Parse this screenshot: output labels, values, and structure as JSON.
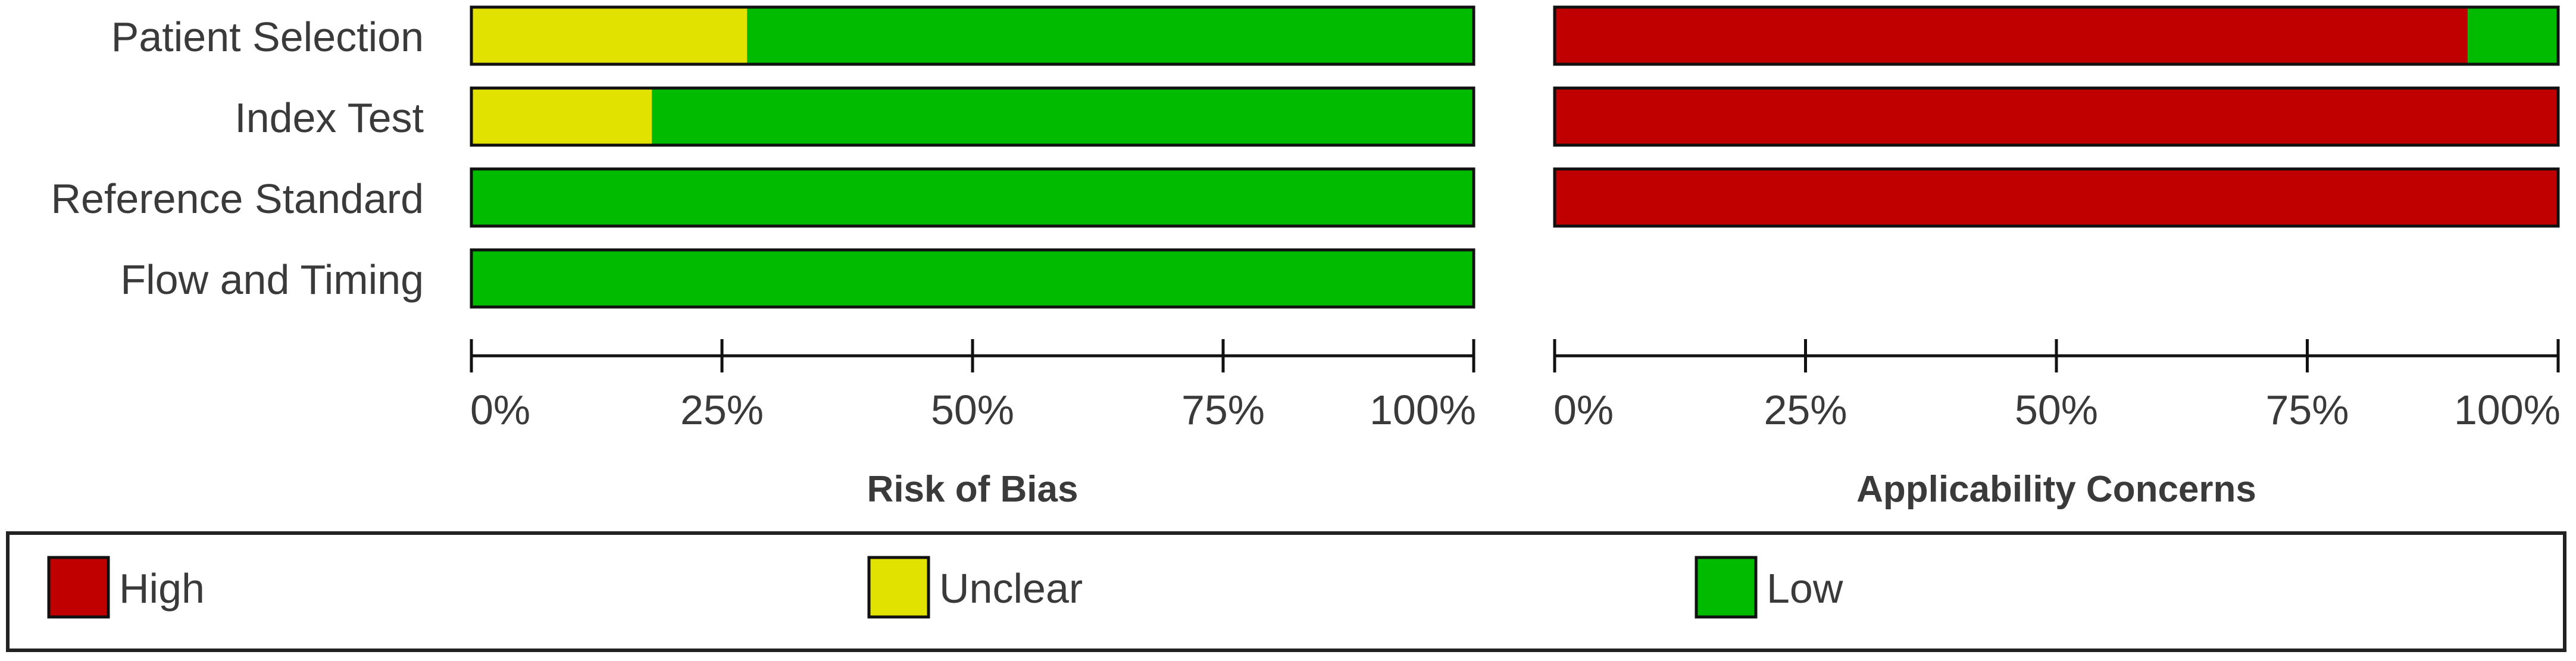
{
  "chart_data": [
    {
      "type": "bar",
      "orientation": "horizontal",
      "stacked": true,
      "title": "Risk of Bias",
      "categories": [
        "Patient Selection",
        "Index Test",
        "Reference Standard",
        "Flow and Timing"
      ],
      "series": [
        {
          "name": "High",
          "values": [
            0,
            0,
            0,
            0
          ]
        },
        {
          "name": "Unclear",
          "values": [
            27.5,
            18,
            0,
            0
          ]
        },
        {
          "name": "Low",
          "values": [
            72.5,
            82,
            100,
            100
          ]
        }
      ],
      "xlim": [
        0,
        100
      ],
      "xticks": [
        "0%",
        "25%",
        "50%",
        "75%",
        "100%"
      ]
    },
    {
      "type": "bar",
      "orientation": "horizontal",
      "stacked": true,
      "title": "Applicability Concerns",
      "categories": [
        "Patient Selection",
        "Index Test",
        "Reference Standard"
      ],
      "series": [
        {
          "name": "High",
          "values": [
            91,
            100,
            100
          ]
        },
        {
          "name": "Unclear",
          "values": [
            0,
            0,
            0
          ]
        },
        {
          "name": "Low",
          "values": [
            9,
            0,
            0
          ]
        }
      ],
      "xlim": [
        0,
        100
      ],
      "xticks": [
        "0%",
        "25%",
        "50%",
        "75%",
        "100%"
      ]
    }
  ],
  "legend": {
    "placement": "bottom",
    "items": [
      {
        "label": "High",
        "color": "#c00000"
      },
      {
        "label": "Unclear",
        "color": "#e2e200"
      },
      {
        "label": "Low",
        "color": "#00bb00"
      }
    ]
  },
  "colors": {
    "High": "#c00000",
    "Unclear": "#e2e200",
    "Low": "#00bb00"
  }
}
